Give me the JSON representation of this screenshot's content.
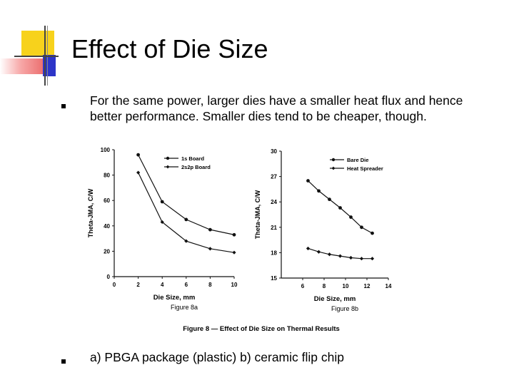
{
  "slide": {
    "title": "Effect of Die Size",
    "bullets": [
      "For the same power, larger dies have a smaller heat flux and hence better performance. Smaller dies tend to be cheaper, though.",
      "a) PBGA package (plastic)  b) ceramic flip chip"
    ]
  },
  "figure": {
    "caption": "Figure 8 — Effect of Die Size on Thermal Results"
  },
  "chart_data": [
    {
      "type": "line",
      "figure_label": "Figure 8a",
      "xlabel": "Die Size, mm",
      "ylabel": "Theta-JMA, C/W",
      "xlim": [
        0,
        10
      ],
      "ylim": [
        0,
        100
      ],
      "x_ticks": [
        "0",
        "2",
        "4",
        "6",
        "8",
        "10"
      ],
      "y_ticks": [
        "0",
        "20",
        "40",
        "60",
        "80",
        "100"
      ],
      "legend_placement": "top-right",
      "series": [
        {
          "name": "1s Board",
          "marker": "circle",
          "x": [
            2,
            4,
            6,
            8,
            10
          ],
          "values": [
            96,
            59,
            45,
            37,
            33
          ]
        },
        {
          "name": "2s2p Board",
          "marker": "diamond",
          "x": [
            2,
            4,
            6,
            8,
            10
          ],
          "values": [
            82,
            43,
            28,
            22,
            19
          ]
        }
      ]
    },
    {
      "type": "line",
      "figure_label": "Figure 8b",
      "xlabel": "Die Size, mm",
      "ylabel": "Theta-JMA, C/W",
      "xlim": [
        4,
        14
      ],
      "ylim": [
        15,
        30
      ],
      "x_ticks": [
        "6",
        "8",
        "10",
        "12",
        "14"
      ],
      "y_ticks": [
        "15",
        "18",
        "21",
        "24",
        "27",
        "30"
      ],
      "legend_placement": "top-right",
      "series": [
        {
          "name": "Bare Die",
          "marker": "circle",
          "x": [
            6.5,
            7.5,
            8.5,
            9.5,
            10.5,
            11.5,
            12.5
          ],
          "values": [
            26.5,
            25.3,
            24.3,
            23.3,
            22.2,
            21.0,
            20.3
          ]
        },
        {
          "name": "Heat Spreader",
          "marker": "diamond",
          "x": [
            6.5,
            7.5,
            8.5,
            9.5,
            10.5,
            11.5,
            12.5
          ],
          "values": [
            18.5,
            18.1,
            17.8,
            17.6,
            17.4,
            17.3,
            17.3
          ]
        }
      ]
    }
  ]
}
